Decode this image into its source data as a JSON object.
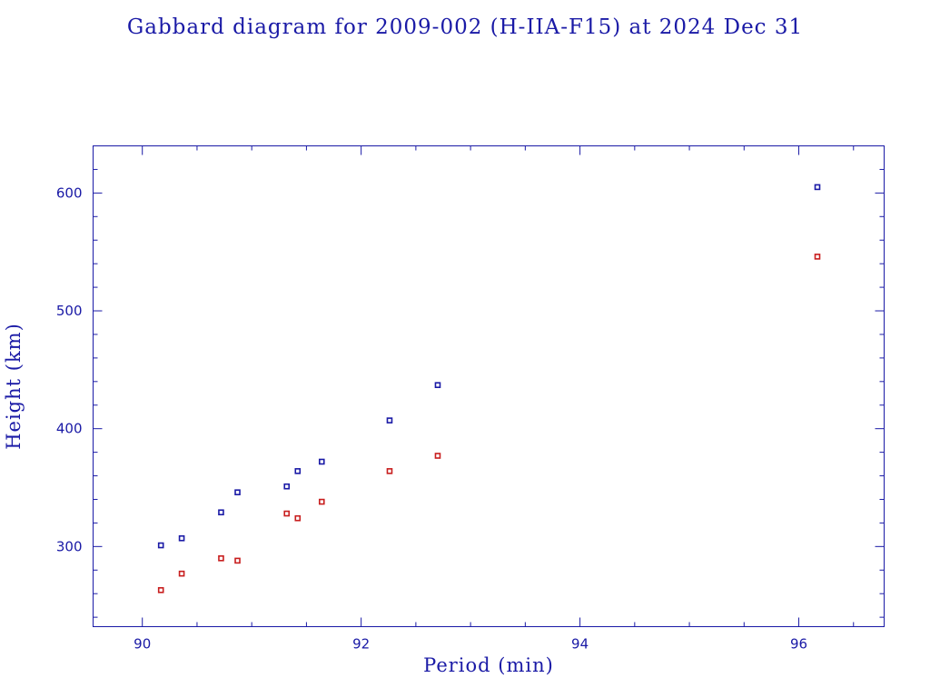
{
  "chart_data": {
    "type": "scatter",
    "title": "Gabbard diagram for 2009-002 (H-IIA-F15) at 2024 Dec 31",
    "xlabel": "Period (min)",
    "ylabel": "Height (km)",
    "xlim": [
      89.55,
      96.78
    ],
    "ylim": [
      232,
      640
    ],
    "x_ticks": [
      90,
      92,
      94,
      96
    ],
    "x_tick_labels": [
      "90",
      "92",
      "94",
      "96"
    ],
    "x_minor_step": 0.5,
    "y_ticks": [
      300,
      400,
      500,
      600
    ],
    "y_tick_labels": [
      "300",
      "400",
      "500",
      "600"
    ],
    "y_minor_step": 20,
    "grid": false,
    "colors": {
      "axis": "#1a1aa6",
      "apogee": "#1a1aa6",
      "perigee": "#c81e1e"
    },
    "series": [
      {
        "key": "apogee",
        "x": [
          90.17,
          90.36,
          90.72,
          90.87,
          91.32,
          91.42,
          91.64,
          92.26,
          92.7,
          96.17
        ],
        "y": [
          301,
          307,
          329,
          346,
          351,
          364,
          372,
          407,
          437,
          605
        ]
      },
      {
        "key": "perigee",
        "x": [
          90.17,
          90.36,
          90.72,
          90.87,
          91.32,
          91.42,
          91.64,
          92.26,
          92.7,
          96.17
        ],
        "y": [
          263,
          277,
          290,
          288,
          328,
          324,
          338,
          364,
          377,
          546
        ]
      }
    ]
  }
}
